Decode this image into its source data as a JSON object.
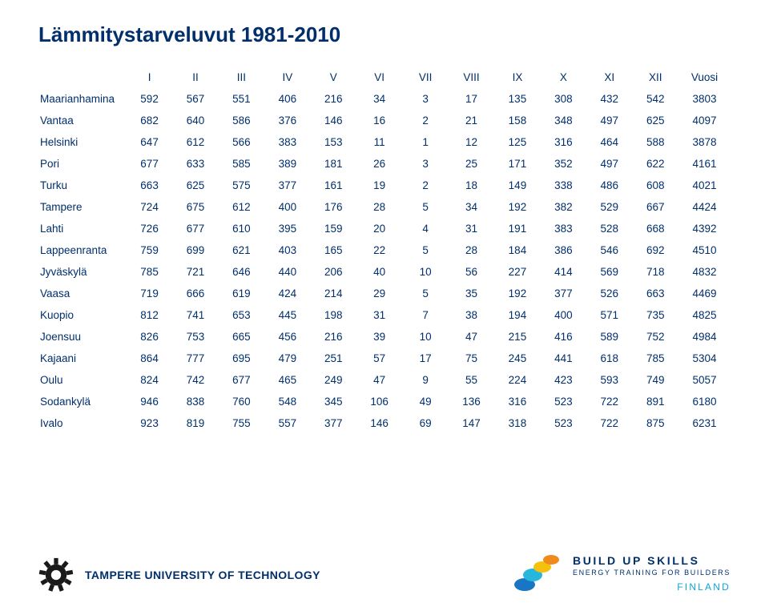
{
  "title": "Lämmitystarveluvut 1981-2010",
  "text_color": "#002f6c",
  "background_color": "#ffffff",
  "title_fontsize": 26,
  "cell_fontsize": 13.5,
  "table": {
    "columns": [
      "",
      "I",
      "II",
      "III",
      "IV",
      "V",
      "VI",
      "VII",
      "VIII",
      "IX",
      "X",
      "XI",
      "XII",
      "Vuosi"
    ],
    "rows": [
      [
        "Maarianhamina",
        "592",
        "567",
        "551",
        "406",
        "216",
        "34",
        "3",
        "17",
        "135",
        "308",
        "432",
        "542",
        "3803"
      ],
      [
        "Vantaa",
        "682",
        "640",
        "586",
        "376",
        "146",
        "16",
        "2",
        "21",
        "158",
        "348",
        "497",
        "625",
        "4097"
      ],
      [
        "Helsinki",
        "647",
        "612",
        "566",
        "383",
        "153",
        "11",
        "1",
        "12",
        "125",
        "316",
        "464",
        "588",
        "3878"
      ],
      [
        "Pori",
        "677",
        "633",
        "585",
        "389",
        "181",
        "26",
        "3",
        "25",
        "171",
        "352",
        "497",
        "622",
        "4161"
      ],
      [
        "Turku",
        "663",
        "625",
        "575",
        "377",
        "161",
        "19",
        "2",
        "18",
        "149",
        "338",
        "486",
        "608",
        "4021"
      ],
      [
        "Tampere",
        "724",
        "675",
        "612",
        "400",
        "176",
        "28",
        "5",
        "34",
        "192",
        "382",
        "529",
        "667",
        "4424"
      ],
      [
        "Lahti",
        "726",
        "677",
        "610",
        "395",
        "159",
        "20",
        "4",
        "31",
        "191",
        "383",
        "528",
        "668",
        "4392"
      ],
      [
        "Lappeenranta",
        "759",
        "699",
        "621",
        "403",
        "165",
        "22",
        "5",
        "28",
        "184",
        "386",
        "546",
        "692",
        "4510"
      ],
      [
        "Jyväskylä",
        "785",
        "721",
        "646",
        "440",
        "206",
        "40",
        "10",
        "56",
        "227",
        "414",
        "569",
        "718",
        "4832"
      ],
      [
        "Vaasa",
        "719",
        "666",
        "619",
        "424",
        "214",
        "29",
        "5",
        "35",
        "192",
        "377",
        "526",
        "663",
        "4469"
      ],
      [
        "Kuopio",
        "812",
        "741",
        "653",
        "445",
        "198",
        "31",
        "7",
        "38",
        "194",
        "400",
        "571",
        "735",
        "4825"
      ],
      [
        "Joensuu",
        "826",
        "753",
        "665",
        "456",
        "216",
        "39",
        "10",
        "47",
        "215",
        "416",
        "589",
        "752",
        "4984"
      ],
      [
        "Kajaani",
        "864",
        "777",
        "695",
        "479",
        "251",
        "57",
        "17",
        "75",
        "245",
        "441",
        "618",
        "785",
        "5304"
      ],
      [
        "Oulu",
        "824",
        "742",
        "677",
        "465",
        "249",
        "47",
        "9",
        "55",
        "224",
        "423",
        "593",
        "749",
        "5057"
      ],
      [
        "Sodankylä",
        "946",
        "838",
        "760",
        "548",
        "345",
        "106",
        "49",
        "136",
        "316",
        "523",
        "722",
        "891",
        "6180"
      ],
      [
        "Ivalo",
        "923",
        "819",
        "755",
        "557",
        "377",
        "146",
        "69",
        "147",
        "318",
        "523",
        "722",
        "875",
        "6231"
      ]
    ]
  },
  "footer": {
    "tut_name": "TAMPERE UNIVERSITY OF TECHNOLOGY",
    "gear_color": "#1a1a1a",
    "bus_line1": "BUILD UP SKILLS",
    "bus_line2": "ENERGY TRAINING FOR BUILDERS",
    "bus_line3": "FINLAND",
    "bus_line3_color": "#0aa6d6",
    "logo_colors": {
      "blue": "#1976c5",
      "cyan": "#27b7dd",
      "yellow": "#f4c20d",
      "orange": "#f08a1d"
    }
  }
}
